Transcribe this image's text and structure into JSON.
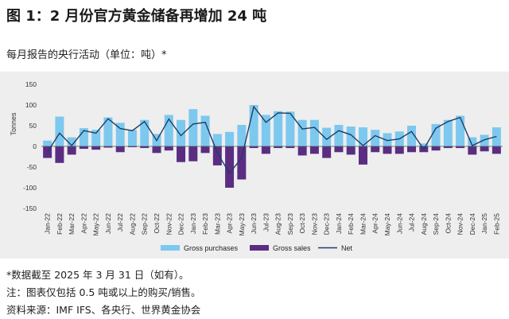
{
  "header": {
    "title": "图 1：2 月份官方黄金储备再增加 24 吨",
    "subtitle": "每月报告的央行活动（单位：吨）*"
  },
  "notes": {
    "note1": "*数据截至 2025 年 3 月 31 日（如有）。",
    "note2": "注：图表仅包括 0.5 吨或以上的购买/销售。",
    "source": "资料来源：IMF IFS、各央行、世界黄金协会"
  },
  "colors": {
    "purchases": "#7dc8ee",
    "sales": "#5b2d82",
    "net": "#1f3d66",
    "panel": "#eeeeee"
  },
  "chart_data": {
    "type": "bar",
    "ylabel": "Tonnes",
    "ylim": [
      -150,
      150
    ],
    "yticks": [
      150,
      100,
      50,
      0,
      -50,
      -100,
      -150
    ],
    "grid": false,
    "legend_position": "bottom",
    "categories": [
      "Jan-22",
      "Feb-22",
      "Mar-22",
      "Apr-22",
      "May-22",
      "Jun-22",
      "Jul-22",
      "Aug-22",
      "Sep-22",
      "Oct-22",
      "Nov-22",
      "Dec-22",
      "Jan-23",
      "Feb-23",
      "Mar-23",
      "Apr-23",
      "May-23",
      "Jun-23",
      "Jul-23",
      "Aug-23",
      "Sep-23",
      "Oct-23",
      "Nov-23",
      "Dec-23",
      "Jan-24",
      "Feb-24",
      "Mar-24",
      "Apr-24",
      "May-24",
      "Jun-24",
      "Jul-24",
      "Aug-24",
      "Sep-24",
      "Oct-24",
      "Nov-24",
      "Dec-24",
      "Jan-25",
      "Feb-25"
    ],
    "x_tick_labels": [
      "Jan-22",
      "Mar-22",
      "May-22",
      "Jul-22",
      "Sep-22",
      "Nov-22",
      "Jan-23",
      "Mar-23",
      "May-23",
      "Jul-23",
      "Sep-23",
      "Nov-23",
      "Jan-24",
      "Mar-24",
      "May-24",
      "Jul-24",
      "Sep-24",
      "Nov-24",
      "Jan-25",
      "Feb-22",
      "Apr-22",
      "Jun-22",
      "Aug-22",
      "Oct-22",
      "Dec-22",
      "Feb-23",
      "Apr-23",
      "Jun-23",
      "Aug-23",
      "Oct-23",
      "Dec-23",
      "Feb-24",
      "Apr-24",
      "Jun-24",
      "Aug-24",
      "Oct-24",
      "Dec-24",
      "Feb-25"
    ],
    "series": [
      {
        "name": "Gross purchases",
        "kind": "bar",
        "values": [
          14,
          72,
          22,
          44,
          40,
          70,
          57,
          40,
          64,
          30,
          76,
          64,
          90,
          74,
          30,
          35,
          52,
          100,
          76,
          85,
          84,
          64,
          64,
          45,
          52,
          48,
          46,
          40,
          32,
          36,
          50,
          7,
          54,
          64,
          74,
          22,
          28,
          46
        ]
      },
      {
        "name": "Gross sales",
        "kind": "bar",
        "values": [
          -28,
          -40,
          -20,
          -6,
          -8,
          -3,
          -14,
          -2,
          -4,
          -16,
          -10,
          -38,
          -36,
          -16,
          -46,
          -100,
          -80,
          -4,
          -18,
          -4,
          -4,
          -22,
          -18,
          -28,
          -14,
          -20,
          -44,
          -14,
          -18,
          -18,
          -14,
          -14,
          -10,
          -4,
          -4,
          -20,
          -12,
          -18
        ]
      },
      {
        "name": "Net",
        "kind": "line",
        "values": [
          -14,
          32,
          2,
          38,
          32,
          67,
          43,
          38,
          60,
          14,
          66,
          26,
          54,
          58,
          -16,
          -65,
          -28,
          96,
          58,
          81,
          80,
          42,
          46,
          17,
          38,
          28,
          2,
          26,
          14,
          18,
          36,
          -7,
          44,
          60,
          70,
          2,
          16,
          24
        ]
      }
    ]
  }
}
